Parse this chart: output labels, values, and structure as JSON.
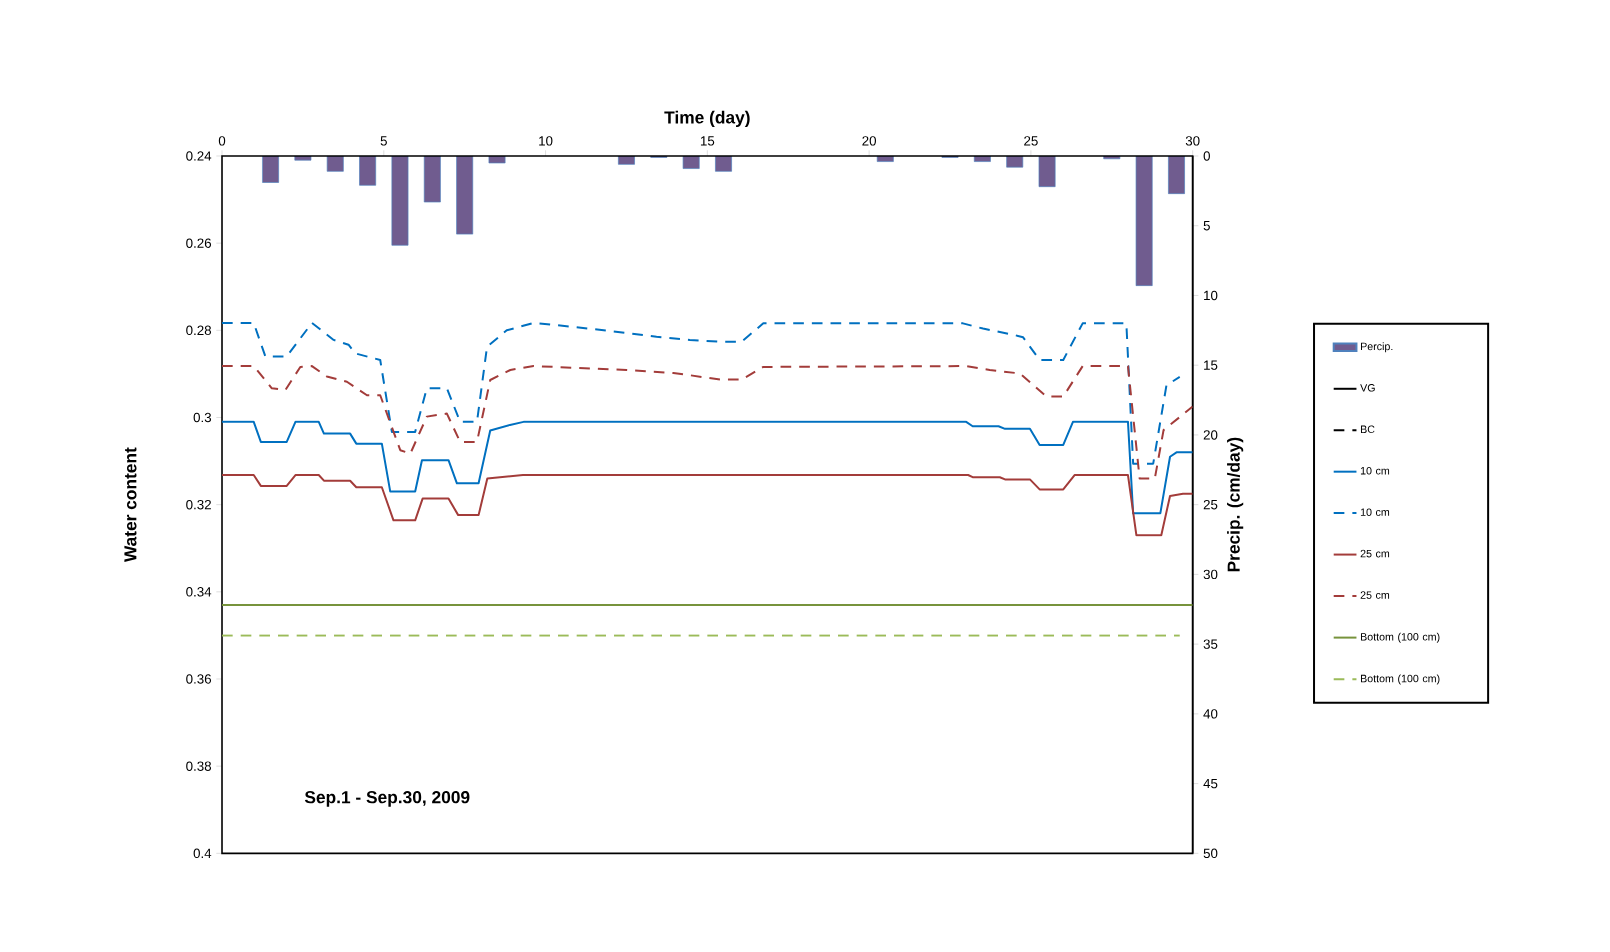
{
  "chart_data": {
    "type": "line",
    "xlabel": "Time  (day)",
    "ylabel": "Water content",
    "y2label": "Precip. (cm/day)",
    "annotations": [
      "Sep.1 - Sep.30, 2009"
    ],
    "xlim": [
      0,
      30
    ],
    "xticks": [
      0,
      5,
      10,
      15,
      20,
      25,
      30
    ],
    "ylim": [
      0.4,
      0.24
    ],
    "yticks": [
      0.24,
      0.26,
      0.28,
      0.3,
      0.32,
      0.34,
      0.36,
      0.38,
      0.4
    ],
    "y2lim": [
      50,
      0
    ],
    "y2ticks": [
      0,
      5,
      10,
      15,
      20,
      25,
      30,
      35,
      40,
      45,
      50
    ],
    "legend": "right",
    "marker": "none",
    "series": [
      {
        "name": "Percip.",
        "type": "bar",
        "axis": "y2",
        "color": "#705c8f",
        "x": [
          1.5,
          2.5,
          3.5,
          4.5,
          5.5,
          6.5,
          7.5,
          8.5,
          12.5,
          13.5,
          14.5,
          15.5,
          20.5,
          22.5,
          23.5,
          24.5,
          25.5,
          27.5,
          28.5,
          29.5
        ],
        "values": [
          1.9,
          0.3,
          1.1,
          2.1,
          6.4,
          3.3,
          5.6,
          0.5,
          0.6,
          0.1,
          0.9,
          1.1,
          0.4,
          0.1,
          0.4,
          0.8,
          2.2,
          0.2,
          9.3,
          2.7
        ]
      },
      {
        "name": "VG",
        "color": "#000000",
        "line_style": "solid"
      },
      {
        "name": "BC",
        "color": "#000000",
        "line_style": "dashed"
      },
      {
        "name": "10 cm",
        "type": "line",
        "color": "#0070c0",
        "line_style": "solid",
        "x": [
          0,
          0.98,
          1.2,
          2.0,
          2.27,
          2.99,
          3.15,
          3.96,
          4.15,
          4.94,
          5.2,
          5.97,
          6.18,
          7.0,
          7.26,
          7.93,
          8.29,
          8.9,
          9.32,
          23.0,
          23.2,
          24.0,
          24.2,
          24.97,
          25.27,
          26.0,
          26.3,
          28.0,
          28.16,
          29.0,
          29.3,
          29.5,
          30
        ],
        "values": [
          0.301,
          0.301,
          0.3056,
          0.3056,
          0.301,
          0.301,
          0.3037,
          0.3037,
          0.306,
          0.306,
          0.317,
          0.317,
          0.3098,
          0.3098,
          0.3151,
          0.3151,
          0.303,
          0.3017,
          0.301,
          0.301,
          0.302,
          0.302,
          0.3026,
          0.3026,
          0.3063,
          0.3063,
          0.301,
          0.301,
          0.322,
          0.322,
          0.309,
          0.308,
          0.308
        ]
      },
      {
        "name": "10 cm",
        "type": "line",
        "color": "#0070c0",
        "line_style": "dashed",
        "x": [
          0,
          0.98,
          1.34,
          2.0,
          2.78,
          3.45,
          3.91,
          4.12,
          4.89,
          5.25,
          5.97,
          6.33,
          6.95,
          7.36,
          7.88,
          8.19,
          8.8,
          9.63,
          10.86,
          12.5,
          13.43,
          14.46,
          15.39,
          16.06,
          16.73,
          22.9,
          23.52,
          24.45,
          24.76,
          25.27,
          26.0,
          26.6,
          27.95,
          28.16,
          28.78,
          29.19,
          29.6
        ],
        "values": [
          0.2783,
          0.2783,
          0.286,
          0.286,
          0.2783,
          0.2822,
          0.2833,
          0.2853,
          0.2868,
          0.3033,
          0.3033,
          0.2933,
          0.2933,
          0.301,
          0.301,
          0.2838,
          0.28,
          0.2783,
          0.2792,
          0.2806,
          0.2815,
          0.2822,
          0.2826,
          0.2826,
          0.2784,
          0.2784,
          0.2796,
          0.281,
          0.2816,
          0.2868,
          0.2868,
          0.2784,
          0.2784,
          0.3106,
          0.3106,
          0.2926,
          0.2907
        ]
      },
      {
        "name": "25 cm",
        "type": "line",
        "color": "#a33c3a",
        "line_style": "solid",
        "x": [
          0,
          0.98,
          1.2,
          2.0,
          2.27,
          2.99,
          3.15,
          3.96,
          4.15,
          4.94,
          5.3,
          5.97,
          6.2,
          7.0,
          7.3,
          7.93,
          8.2,
          9.3,
          23.06,
          23.2,
          24.04,
          24.2,
          24.97,
          25.27,
          26.0,
          26.35,
          28.0,
          28.26,
          29.03,
          29.3,
          29.7,
          30
        ],
        "values": [
          0.3132,
          0.3132,
          0.3157,
          0.3157,
          0.3132,
          0.3132,
          0.3145,
          0.3145,
          0.316,
          0.316,
          0.3236,
          0.3236,
          0.3186,
          0.3186,
          0.3224,
          0.3224,
          0.314,
          0.3132,
          0.3132,
          0.3137,
          0.3137,
          0.3142,
          0.3142,
          0.3165,
          0.3165,
          0.3132,
          0.3132,
          0.327,
          0.327,
          0.318,
          0.3175,
          0.3175
        ]
      },
      {
        "name": "25 cm",
        "type": "line",
        "color": "#a33c3a",
        "line_style": "dashed",
        "x": [
          0,
          0.98,
          1.54,
          1.96,
          2.42,
          2.78,
          3.24,
          3.86,
          4.48,
          4.89,
          5.51,
          5.82,
          6.33,
          6.95,
          7.36,
          7.88,
          8.29,
          8.91,
          9.63,
          12.5,
          13.95,
          14.46,
          15.39,
          16.06,
          16.73,
          23.0,
          23.73,
          24.66,
          25.48,
          26.0,
          26.6,
          28.0,
          28.36,
          28.83,
          29.1,
          30
        ],
        "values": [
          0.2882,
          0.2882,
          0.2933,
          0.2937,
          0.2884,
          0.2882,
          0.2906,
          0.2918,
          0.2949,
          0.2949,
          0.3075,
          0.3083,
          0.2998,
          0.2991,
          0.3056,
          0.3056,
          0.2914,
          0.2891,
          0.2882,
          0.2891,
          0.2898,
          0.2903,
          0.2913,
          0.2913,
          0.2884,
          0.2882,
          0.2891,
          0.2899,
          0.2952,
          0.2952,
          0.2882,
          0.2882,
          0.314,
          0.314,
          0.3029,
          0.2975
        ]
      },
      {
        "name": "Bottom (100 cm)",
        "type": "line",
        "color": "#77933c",
        "line_style": "solid",
        "x": [
          0,
          30
        ],
        "values": [
          0.343,
          0.343
        ]
      },
      {
        "name": "Bottom (100 cm)",
        "type": "line",
        "color": "#9bbb59",
        "line_style": "dashed",
        "x": [
          0,
          29.6
        ],
        "values": [
          0.35,
          0.35
        ]
      }
    ]
  }
}
